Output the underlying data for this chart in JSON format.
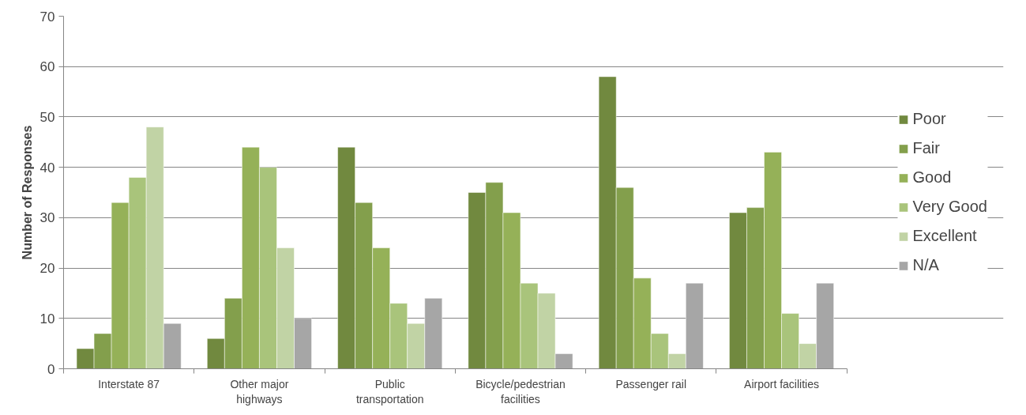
{
  "chart_data": {
    "type": "bar",
    "ylabel": "Number of Responses",
    "categories": [
      "Interstate 87",
      "Other major highways",
      "Public transportation",
      "Bicycle/pedestrian facilities",
      "Passenger rail",
      "Airport facilities"
    ],
    "series": [
      {
        "name": "Poor",
        "color": "#71893f",
        "values": [
          4,
          6,
          44,
          35,
          58,
          31
        ]
      },
      {
        "name": "Fair",
        "color": "#839f4c",
        "values": [
          7,
          14,
          33,
          37,
          36,
          32
        ]
      },
      {
        "name": "Good",
        "color": "#95b158",
        "values": [
          33,
          44,
          24,
          31,
          18,
          43
        ]
      },
      {
        "name": "Very Good",
        "color": "#a9c47b",
        "values": [
          38,
          40,
          13,
          17,
          7,
          11
        ]
      },
      {
        "name": "Excellent",
        "color": "#c1d3a5",
        "values": [
          48,
          24,
          9,
          15,
          3,
          5
        ]
      },
      {
        "name": "N/A",
        "color": "#a6a6a6",
        "values": [
          9,
          10,
          14,
          3,
          17,
          17
        ]
      }
    ],
    "ylim": [
      0,
      70
    ],
    "yticks": [
      0,
      10,
      20,
      30,
      40,
      50,
      60,
      70
    ],
    "grid": "y",
    "legend": "right"
  }
}
